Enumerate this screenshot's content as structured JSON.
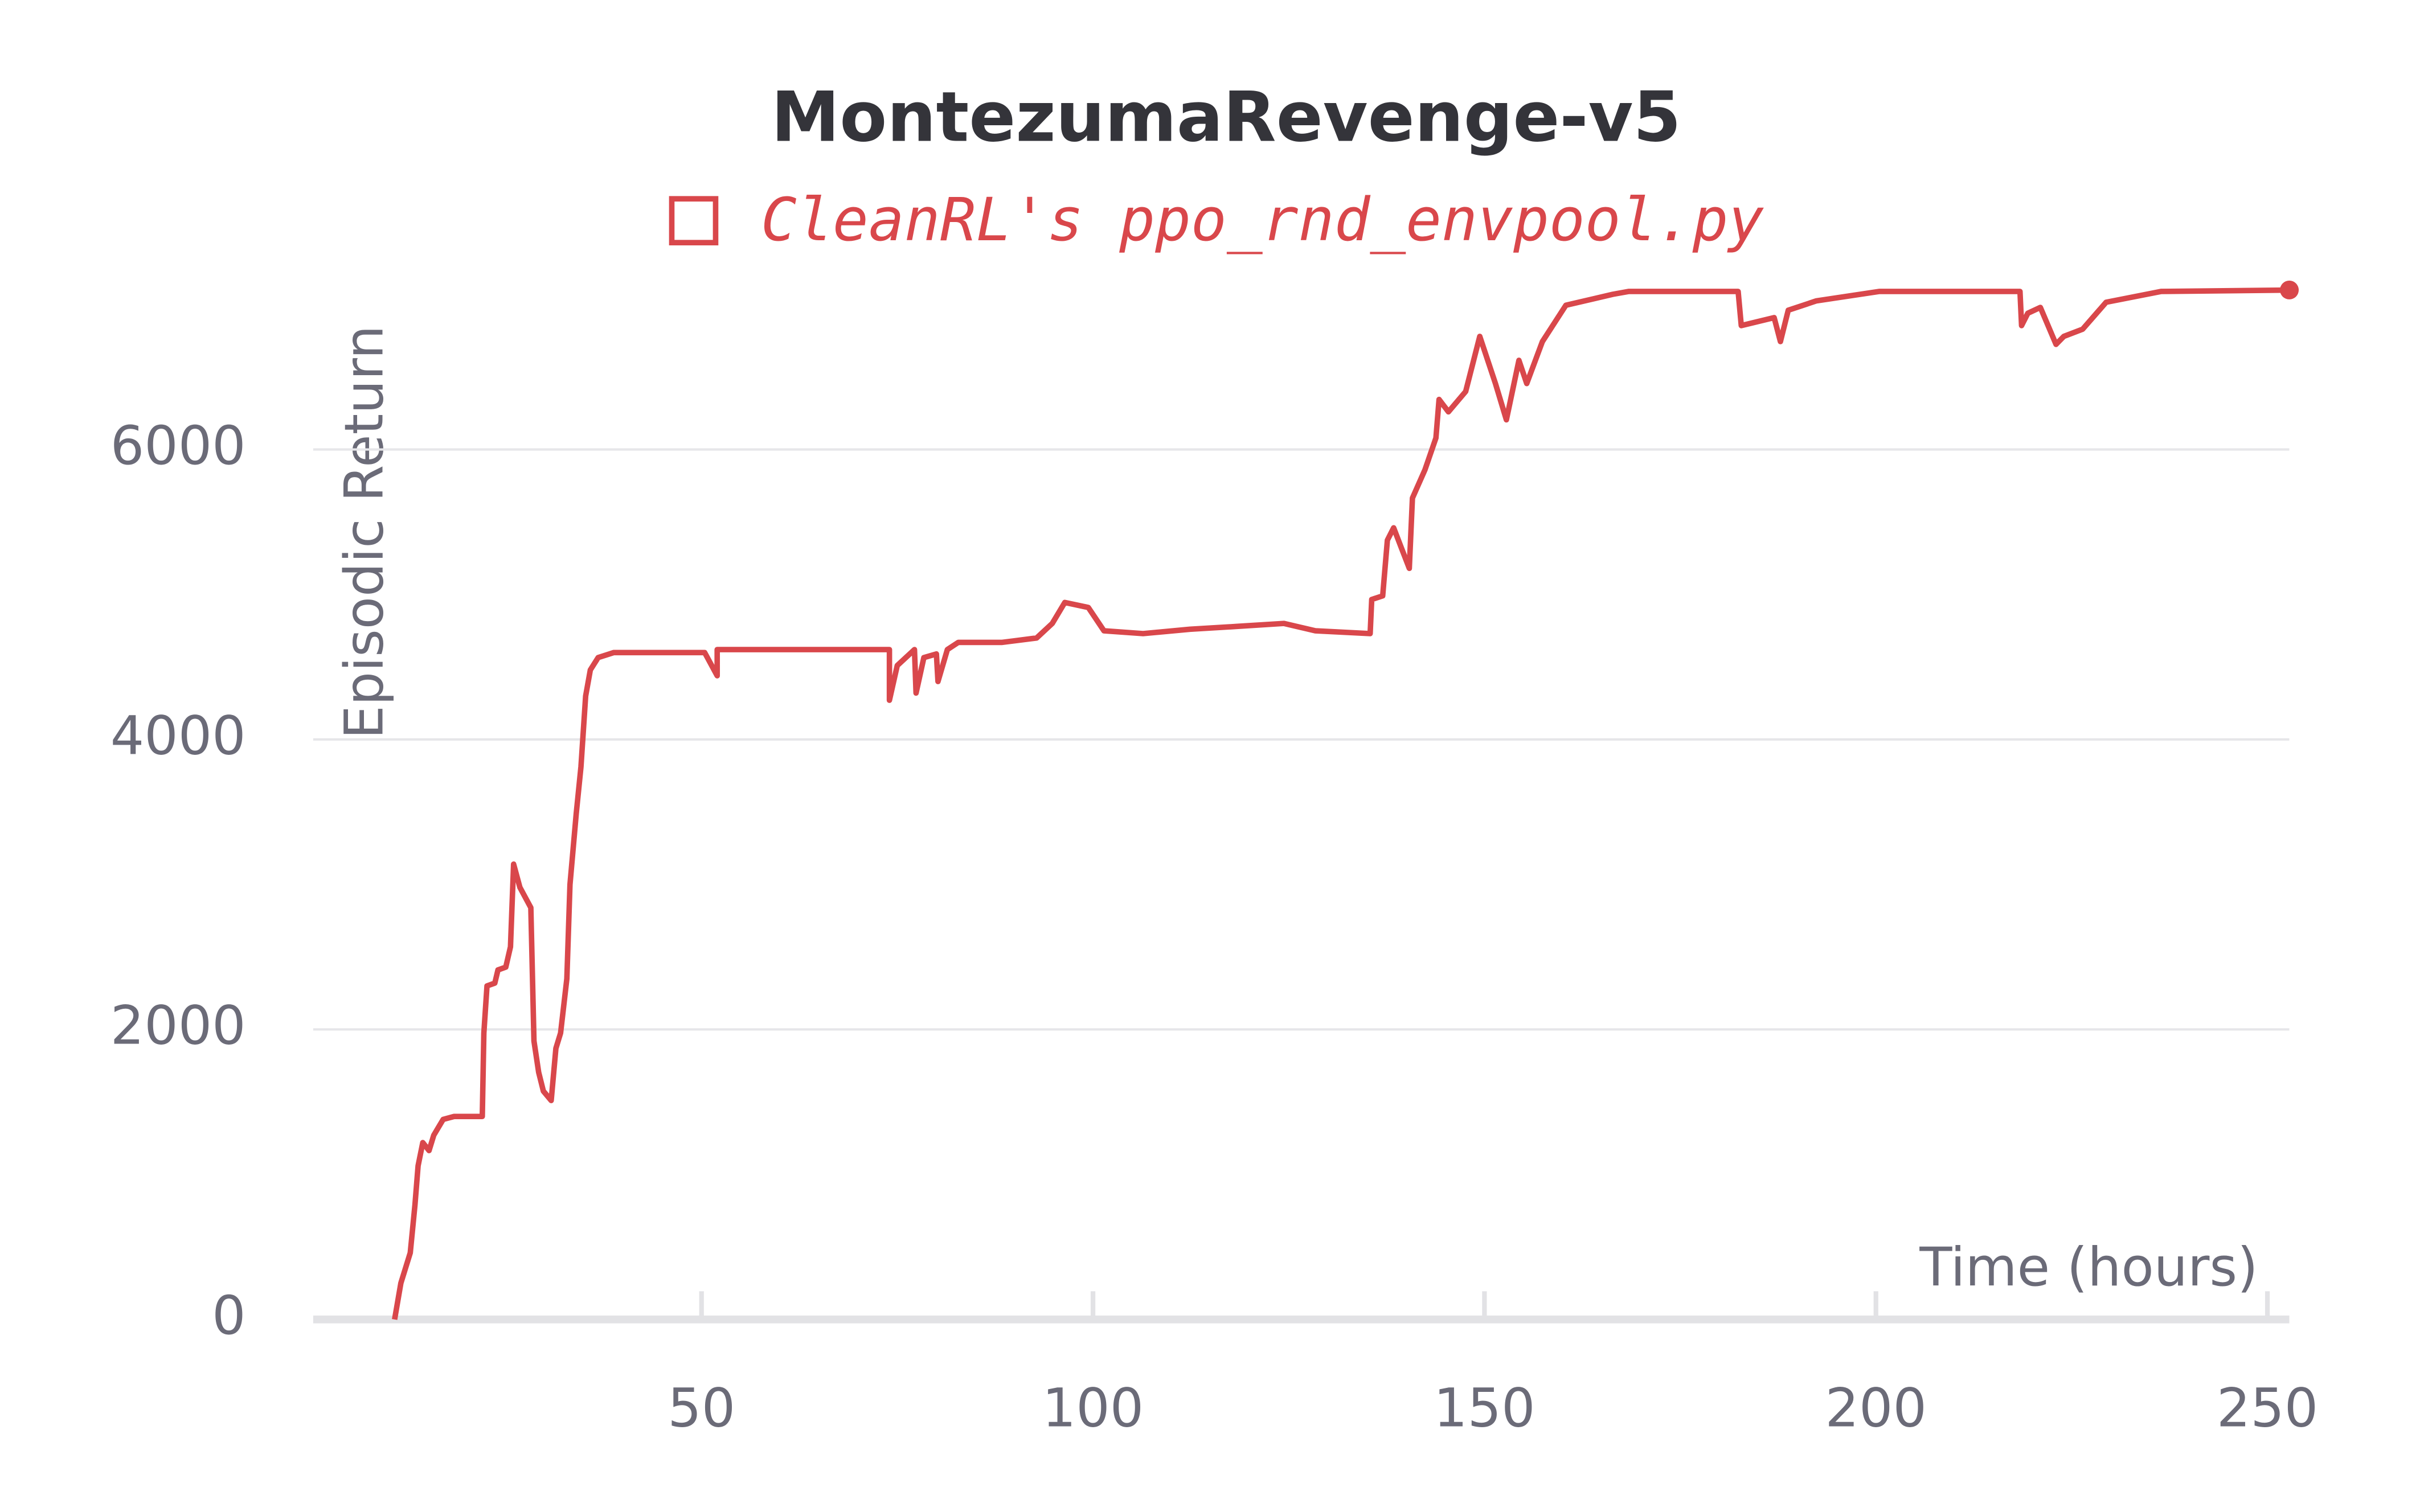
{
  "chart_data": {
    "type": "line",
    "title": "MontezumaRevenge-v5",
    "x_label": "Time (hours)",
    "y_label": "Episodic Return",
    "x": [
      10.8,
      11.6,
      12.8,
      13.4,
      13.8,
      14.4,
      15.2,
      15.8,
      17,
      18.4,
      22,
      22.2,
      22.6,
      23.6,
      24,
      25,
      25.6,
      26,
      26.8,
      28.2,
      28.6,
      29.2,
      29.8,
      30.8,
      31.4,
      32,
      32.8,
      33.2,
      34,
      34.6,
      35.2,
      35.8,
      36.8,
      38.8,
      50.4,
      52,
      52,
      74,
      74,
      75,
      77.2,
      77.4,
      78.4,
      80,
      80.2,
      81.4,
      82.8,
      88.4,
      92.8,
      94.8,
      96.4,
      99.4,
      101.4,
      106.4,
      112.4,
      118.4,
      124.4,
      128.4,
      135.4,
      135.6,
      137,
      137.6,
      138.4,
      139.4,
      140.4,
      140.8,
      142.4,
      143.8,
      144.2,
      145.4,
      147.6,
      149.4,
      151.4,
      152.8,
      154.4,
      155.4,
      157.4,
      160.4,
      166.4,
      168.4,
      182.4,
      182.8,
      187,
      187.8,
      188.8,
      192.4,
      200.4,
      218.4,
      218.6,
      219.4,
      221,
      223,
      224,
      226.4,
      229.4,
      236.4,
      252.8
    ],
    "series": [
      {
        "name": "CleanRL's ppo_rnd_envpool.py",
        "color": "#d9474b",
        "values": [
          0,
          250,
          460,
          790,
          1060,
          1220,
          1165,
          1270,
          1380,
          1400,
          1400,
          1975,
          2300,
          2320,
          2410,
          2430,
          2570,
          3140,
          2980,
          2840,
          1920,
          1705,
          1575,
          1510,
          1870,
          1975,
          2350,
          3000,
          3490,
          3810,
          4300,
          4480,
          4565,
          4600,
          4600,
          4440,
          4620,
          4620,
          4270,
          4510,
          4620,
          4320,
          4565,
          4590,
          4400,
          4620,
          4670,
          4670,
          4700,
          4800,
          4945,
          4910,
          4750,
          4730,
          4760,
          4780,
          4800,
          4750,
          4730,
          4965,
          4990,
          5375,
          5460,
          5320,
          5180,
          5665,
          5860,
          6080,
          6345,
          6260,
          6400,
          6780,
          6455,
          6205,
          6615,
          6455,
          6745,
          6995,
          7070,
          7090,
          7090,
          6855,
          6910,
          6745,
          6960,
          7025,
          7090,
          7090,
          6855,
          6940,
          6980,
          6725,
          6780,
          6830,
          7015,
          7090,
          7100
        ]
      }
    ],
    "xlim": [
      0,
      253
    ],
    "ylim": [
      0,
      7200
    ],
    "xticks": [
      50,
      100,
      150,
      200,
      250
    ],
    "yticks": [
      0,
      2000,
      4000,
      6000
    ],
    "grid": true
  }
}
